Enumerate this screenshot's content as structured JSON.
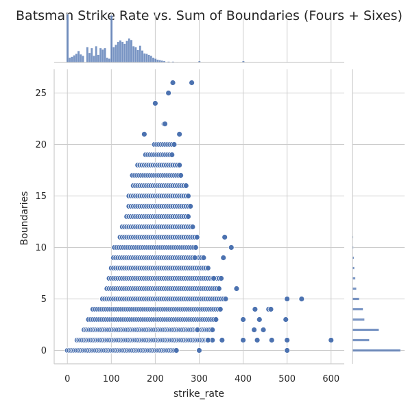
{
  "chart_data": {
    "type": "scatter",
    "title": "Batsman Strike Rate vs. Sum of Boundaries (Fours + Sixes)",
    "xlabel": "strike_rate",
    "ylabel": "Boundaries",
    "xlim": [
      -30,
      630
    ],
    "ylim": [
      -1.3,
      27.3
    ],
    "xticks": [
      0,
      100,
      200,
      300,
      400,
      500,
      600
    ],
    "yticks": [
      0,
      5,
      10,
      15,
      20,
      25
    ],
    "grid": true,
    "points": [
      [
        230,
        25
      ],
      [
        240,
        26
      ],
      [
        283,
        26
      ],
      [
        200,
        24
      ],
      [
        175,
        21
      ],
      [
        255,
        21
      ],
      [
        220,
        22
      ],
      [
        222,
        22
      ],
      [
        358,
        11
      ],
      [
        373,
        10
      ],
      [
        355,
        9
      ],
      [
        290,
        9
      ],
      [
        333,
        7
      ],
      [
        345,
        6
      ],
      [
        385,
        6
      ],
      [
        500,
        5
      ],
      [
        533,
        5
      ],
      [
        427,
        4
      ],
      [
        458,
        4
      ],
      [
        463,
        4
      ],
      [
        437,
        3
      ],
      [
        400,
        3
      ],
      [
        497,
        3
      ],
      [
        425,
        2
      ],
      [
        446,
        2
      ],
      [
        432,
        1
      ],
      [
        465,
        1
      ],
      [
        352,
        1
      ],
      [
        600,
        1
      ],
      [
        500,
        1
      ],
      [
        330,
        1
      ],
      [
        320,
        1
      ],
      [
        400,
        1
      ],
      [
        296,
        2
      ],
      [
        300,
        0
      ],
      [
        500,
        0
      ]
    ],
    "bands": [
      {
        "y": 0,
        "x": [
          0,
          250
        ]
      },
      {
        "y": 1,
        "x": [
          22,
          320
        ]
      },
      {
        "y": 2,
        "x": [
          38,
          330
        ]
      },
      {
        "y": 3,
        "x": [
          48,
          340
        ]
      },
      {
        "y": 4,
        "x": [
          58,
          350
        ]
      },
      {
        "y": 5,
        "x": [
          80,
          360
        ]
      },
      {
        "y": 6,
        "x": [
          90,
          340
        ]
      },
      {
        "y": 7,
        "x": [
          95,
          350
        ]
      },
      {
        "y": 8,
        "x": [
          100,
          320
        ]
      },
      {
        "y": 9,
        "x": [
          105,
          310
        ]
      },
      {
        "y": 10,
        "x": [
          107,
          295
        ]
      },
      {
        "y": 11,
        "x": [
          120,
          295
        ]
      },
      {
        "y": 12,
        "x": [
          125,
          285
        ]
      },
      {
        "y": 13,
        "x": [
          135,
          275
        ]
      },
      {
        "y": 14,
        "x": [
          140,
          280
        ]
      },
      {
        "y": 15,
        "x": [
          140,
          275
        ]
      },
      {
        "y": 16,
        "x": [
          150,
          270
        ]
      },
      {
        "y": 17,
        "x": [
          148,
          260
        ]
      },
      {
        "y": 18,
        "x": [
          160,
          255
        ]
      },
      {
        "y": 19,
        "x": [
          178,
          240
        ]
      },
      {
        "y": 20,
        "x": [
          198,
          245
        ]
      }
    ],
    "marginal_x": {
      "bins": [
        [
          0,
          100
        ],
        [
          5,
          10
        ],
        [
          10,
          12
        ],
        [
          15,
          15
        ],
        [
          20,
          18
        ],
        [
          25,
          24
        ],
        [
          30,
          17
        ],
        [
          35,
          14
        ],
        [
          45,
          32
        ],
        [
          50,
          20
        ],
        [
          55,
          30
        ],
        [
          60,
          14
        ],
        [
          65,
          34
        ],
        [
          70,
          16
        ],
        [
          75,
          30
        ],
        [
          80,
          27
        ],
        [
          85,
          30
        ],
        [
          90,
          10
        ],
        [
          95,
          8
        ],
        [
          100,
          98
        ],
        [
          105,
          32
        ],
        [
          110,
          37
        ],
        [
          115,
          43
        ],
        [
          120,
          46
        ],
        [
          125,
          43
        ],
        [
          130,
          39
        ],
        [
          135,
          45
        ],
        [
          140,
          50
        ],
        [
          145,
          47
        ],
        [
          150,
          34
        ],
        [
          155,
          32
        ],
        [
          160,
          26
        ],
        [
          165,
          35
        ],
        [
          170,
          25
        ],
        [
          175,
          19
        ],
        [
          180,
          18
        ],
        [
          185,
          16
        ],
        [
          190,
          14
        ],
        [
          195,
          10
        ],
        [
          200,
          8
        ],
        [
          205,
          6
        ],
        [
          210,
          5
        ],
        [
          215,
          4
        ],
        [
          220,
          3
        ],
        [
          230,
          2
        ],
        [
          240,
          2
        ],
        [
          250,
          1
        ],
        [
          300,
          3
        ],
        [
          400,
          3
        ],
        [
          500,
          1
        ]
      ]
    },
    "marginal_y": {
      "bins": [
        [
          0,
          1.0
        ],
        [
          1,
          0.35
        ],
        [
          2,
          0.55
        ],
        [
          3,
          0.25
        ],
        [
          4,
          0.22
        ],
        [
          5,
          0.14
        ],
        [
          6,
          0.08
        ],
        [
          7,
          0.06
        ],
        [
          8,
          0.04
        ],
        [
          9,
          0.03
        ],
        [
          10,
          0.02
        ],
        [
          11,
          0.015
        ]
      ]
    }
  }
}
